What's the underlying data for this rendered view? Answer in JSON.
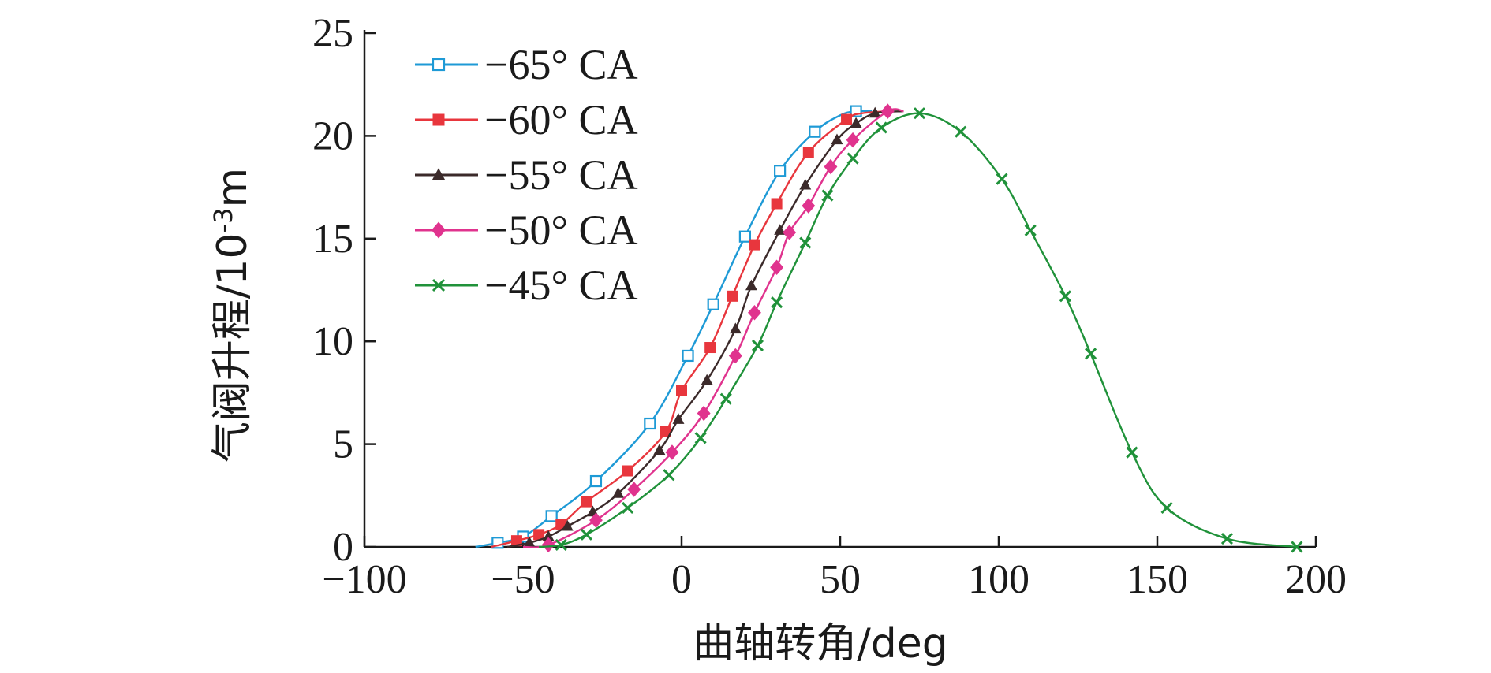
{
  "chart_data": {
    "type": "line",
    "xlabel": "曲轴转角/deg",
    "ylabel_main": "气阀升程/10",
    "ylabel_sup": "-3",
    "ylabel_unit": "m",
    "xlim": [
      -100,
      200
    ],
    "ylim": [
      0,
      25
    ],
    "xticks": [
      -100,
      -50,
      0,
      50,
      100,
      150,
      200
    ],
    "yticks": [
      0,
      5,
      10,
      15,
      20,
      25
    ],
    "xtick_labels": [
      "−100",
      "−50",
      "0",
      "50",
      "100",
      "150",
      "200"
    ],
    "ytick_labels": [
      "0",
      "5",
      "10",
      "15",
      "20",
      "25"
    ],
    "legend_position": "top-left",
    "series": [
      {
        "name": "−65° CA",
        "color": "#1e9ad6",
        "marker": "square-open",
        "x": [
          -65,
          -58,
          -50,
          -41,
          -27,
          -10,
          2,
          10,
          20,
          31,
          42,
          50,
          55,
          60
        ],
        "y": [
          0,
          0.2,
          0.5,
          1.5,
          3.2,
          6.0,
          9.3,
          11.8,
          15.1,
          18.3,
          20.2,
          21.0,
          21.2,
          21.2
        ],
        "markers_x": [
          -58,
          -50,
          -41,
          -27,
          -10,
          2,
          10,
          20,
          31,
          42,
          55
        ],
        "markers_y": [
          0.2,
          0.5,
          1.5,
          3.2,
          6.0,
          9.3,
          11.8,
          15.1,
          18.3,
          20.2,
          21.2
        ]
      },
      {
        "name": "−60° CA",
        "color": "#e8363d",
        "marker": "square-filled",
        "x": [
          -60,
          -52,
          -45,
          -38,
          -30,
          -17,
          -5,
          0,
          9,
          16,
          23,
          30,
          40,
          52,
          57,
          66
        ],
        "y": [
          0,
          0.3,
          0.6,
          1.1,
          2.2,
          3.7,
          5.6,
          7.6,
          9.7,
          12.2,
          14.7,
          16.7,
          19.2,
          20.8,
          21.1,
          21.2
        ],
        "markers_x": [
          -52,
          -45,
          -38,
          -30,
          -17,
          -5,
          0,
          9,
          16,
          23,
          30,
          40,
          52
        ],
        "markers_y": [
          0.3,
          0.6,
          1.1,
          2.2,
          3.7,
          5.6,
          7.6,
          9.7,
          12.2,
          14.7,
          16.7,
          19.2,
          20.8
        ]
      },
      {
        "name": "−55° CA",
        "color": "#3b2a2a",
        "marker": "triangle-filled",
        "x": [
          -55,
          -48,
          -42,
          -36,
          -28,
          -20,
          -7,
          -1,
          8,
          17,
          22,
          31,
          39,
          49,
          55,
          61,
          70
        ],
        "y": [
          0,
          0.2,
          0.5,
          1.0,
          1.7,
          2.6,
          4.7,
          6.2,
          8.1,
          10.6,
          12.7,
          15.4,
          17.6,
          19.8,
          20.6,
          21.1,
          21.2
        ],
        "markers_x": [
          -48,
          -42,
          -36,
          -28,
          -20,
          -7,
          -1,
          8,
          17,
          22,
          31,
          39,
          49,
          55,
          61
        ],
        "markers_y": [
          0.2,
          0.5,
          1.0,
          1.7,
          2.6,
          4.7,
          6.2,
          8.1,
          10.6,
          12.7,
          15.4,
          17.6,
          19.8,
          20.6,
          21.1
        ]
      },
      {
        "name": "−50° CA",
        "color": "#e0338e",
        "marker": "diamond-filled",
        "x": [
          -50,
          -42,
          -27,
          -15,
          -3,
          7,
          17,
          23,
          30,
          34,
          40,
          47,
          54,
          65,
          70
        ],
        "y": [
          0,
          0.1,
          1.3,
          2.8,
          4.6,
          6.5,
          9.3,
          11.4,
          13.6,
          15.3,
          16.6,
          18.5,
          19.8,
          21.2,
          21.2
        ],
        "markers_x": [
          -42,
          -27,
          -15,
          -3,
          7,
          17,
          23,
          30,
          34,
          40,
          47,
          54,
          65
        ],
        "markers_y": [
          0.1,
          1.3,
          2.8,
          4.6,
          6.5,
          9.3,
          11.4,
          13.6,
          15.3,
          16.6,
          18.5,
          19.8,
          21.2
        ]
      },
      {
        "name": "−45° CA",
        "color": "#20923a",
        "marker": "x",
        "x": [
          -45,
          -38,
          -30,
          -17,
          -4,
          6,
          14,
          24,
          30,
          39,
          46,
          54,
          63,
          75,
          88,
          101,
          110,
          121,
          129,
          142,
          153,
          172,
          194
        ],
        "y": [
          0,
          0.1,
          0.6,
          1.9,
          3.5,
          5.3,
          7.2,
          9.8,
          11.9,
          14.8,
          17.1,
          18.9,
          20.4,
          21.1,
          20.2,
          17.9,
          15.4,
          12.2,
          9.4,
          4.6,
          1.9,
          0.4,
          0
        ],
        "markers_x": [
          -38,
          -30,
          -17,
          -4,
          6,
          14,
          24,
          30,
          39,
          46,
          54,
          63,
          75,
          88,
          101,
          110,
          121,
          129,
          142,
          153,
          172,
          194
        ],
        "markers_y": [
          0.1,
          0.6,
          1.9,
          3.5,
          5.3,
          7.2,
          9.8,
          11.9,
          14.8,
          17.1,
          18.9,
          20.4,
          21.1,
          20.2,
          17.9,
          15.4,
          12.2,
          9.4,
          4.6,
          1.9,
          0.4,
          0
        ]
      }
    ]
  }
}
